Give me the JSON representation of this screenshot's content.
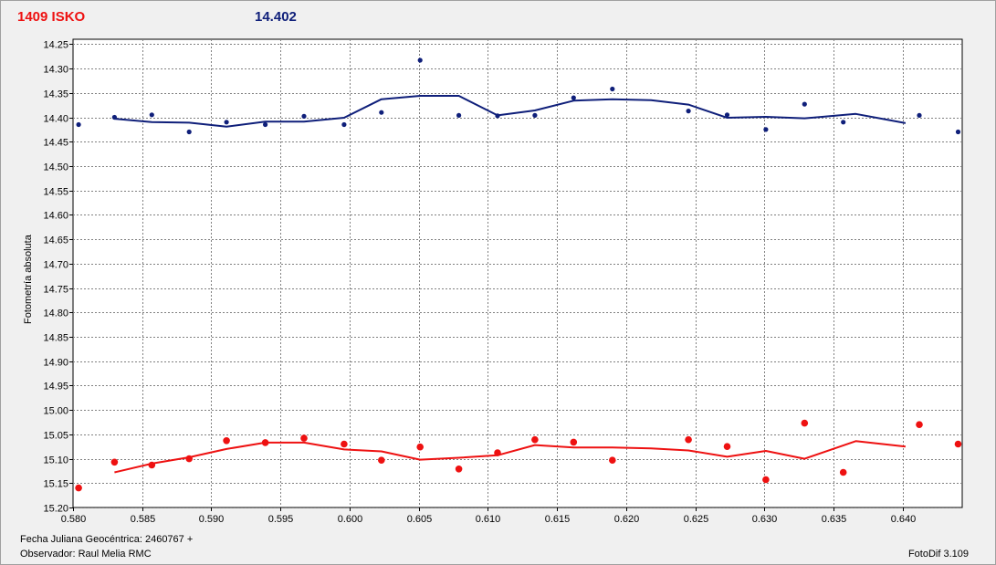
{
  "header": {
    "object_label": "1409 ISKO",
    "mean_value": "14.402"
  },
  "footer": {
    "date_label": "Fecha Juliana Geocéntrica: 2460767 +",
    "observer_label": "Observador: Raul Melia RMC",
    "software_label": "FotoDif 3.109"
  },
  "colors": {
    "series_blue": "#0f1f7a",
    "series_red": "#ee1111",
    "grid": "#808080"
  },
  "chart_data": {
    "type": "scatter",
    "ylabel": "Fotometría absoluta",
    "xlabel": "",
    "xlim": [
      0.58,
      0.6443
    ],
    "ylim": [
      15.2,
      14.24
    ],
    "y_inverted": true,
    "grid": true,
    "x_ticks": [
      "0.580",
      "0.585",
      "0.590",
      "0.595",
      "0.600",
      "0.605",
      "0.610",
      "0.615",
      "0.620",
      "0.625",
      "0.630",
      "0.635",
      "0.640"
    ],
    "y_ticks": [
      "14.25",
      "14.30",
      "14.35",
      "14.40",
      "14.45",
      "14.50",
      "14.55",
      "14.60",
      "14.65",
      "14.70",
      "14.75",
      "14.80",
      "14.85",
      "14.90",
      "14.95",
      "15.00",
      "15.05",
      "15.10",
      "15.15",
      "15.20"
    ],
    "series": [
      {
        "color": "#0f1f7a",
        "points": [
          [
            0.5804,
            14.415
          ],
          [
            0.583,
            14.4
          ],
          [
            0.5857,
            14.395
          ],
          [
            0.5884,
            14.43
          ],
          [
            0.5911,
            14.41
          ],
          [
            0.5939,
            14.415
          ],
          [
            0.5967,
            14.398
          ],
          [
            0.5996,
            14.415
          ],
          [
            0.6023,
            14.39
          ],
          [
            0.6051,
            14.283
          ],
          [
            0.6079,
            14.396
          ],
          [
            0.6107,
            14.397
          ],
          [
            0.6134,
            14.396
          ],
          [
            0.6162,
            14.36
          ],
          [
            0.619,
            14.342
          ],
          [
            0.6245,
            14.387
          ],
          [
            0.6273,
            14.395
          ],
          [
            0.6301,
            14.425
          ],
          [
            0.6329,
            14.373
          ],
          [
            0.6357,
            14.41
          ],
          [
            0.6412,
            14.396
          ],
          [
            0.644,
            14.43
          ]
        ],
        "trend": [
          [
            0.583,
            14.403
          ],
          [
            0.5857,
            14.41
          ],
          [
            0.5884,
            14.411
          ],
          [
            0.5911,
            14.419
          ],
          [
            0.5939,
            14.409
          ],
          [
            0.5967,
            14.409
          ],
          [
            0.5996,
            14.401
          ],
          [
            0.6023,
            14.363
          ],
          [
            0.6051,
            14.356
          ],
          [
            0.6079,
            14.356
          ],
          [
            0.6107,
            14.396
          ],
          [
            0.6134,
            14.386
          ],
          [
            0.6162,
            14.366
          ],
          [
            0.619,
            14.363
          ],
          [
            0.6218,
            14.365
          ],
          [
            0.6245,
            14.374
          ],
          [
            0.6273,
            14.401
          ],
          [
            0.6301,
            14.399
          ],
          [
            0.6329,
            14.402
          ],
          [
            0.6366,
            14.393
          ],
          [
            0.6402,
            14.412
          ]
        ]
      },
      {
        "color": "#ee1111",
        "points": [
          [
            0.5804,
            15.16
          ],
          [
            0.583,
            15.107
          ],
          [
            0.5857,
            15.113
          ],
          [
            0.5884,
            15.1
          ],
          [
            0.5911,
            15.063
          ],
          [
            0.5939,
            15.067
          ],
          [
            0.5967,
            15.058
          ],
          [
            0.5996,
            15.07
          ],
          [
            0.6023,
            15.103
          ],
          [
            0.6051,
            15.076
          ],
          [
            0.6079,
            15.121
          ],
          [
            0.6107,
            15.088
          ],
          [
            0.6134,
            15.061
          ],
          [
            0.6162,
            15.066
          ],
          [
            0.619,
            15.103
          ],
          [
            0.6245,
            15.061
          ],
          [
            0.6273,
            15.075
          ],
          [
            0.6301,
            15.143
          ],
          [
            0.6329,
            15.027
          ],
          [
            0.6357,
            15.128
          ],
          [
            0.6412,
            15.03
          ],
          [
            0.644,
            15.07
          ]
        ],
        "trend": [
          [
            0.583,
            15.128
          ],
          [
            0.5857,
            15.11
          ],
          [
            0.5884,
            15.097
          ],
          [
            0.5911,
            15.08
          ],
          [
            0.5939,
            15.067
          ],
          [
            0.5967,
            15.067
          ],
          [
            0.5996,
            15.081
          ],
          [
            0.6023,
            15.085
          ],
          [
            0.6051,
            15.102
          ],
          [
            0.6079,
            15.098
          ],
          [
            0.6107,
            15.093
          ],
          [
            0.6134,
            15.072
          ],
          [
            0.6162,
            15.077
          ],
          [
            0.619,
            15.077
          ],
          [
            0.6218,
            15.079
          ],
          [
            0.6245,
            15.083
          ],
          [
            0.6273,
            15.096
          ],
          [
            0.6301,
            15.084
          ],
          [
            0.6329,
            15.1
          ],
          [
            0.6366,
            15.064
          ],
          [
            0.6402,
            15.075
          ]
        ]
      }
    ]
  }
}
